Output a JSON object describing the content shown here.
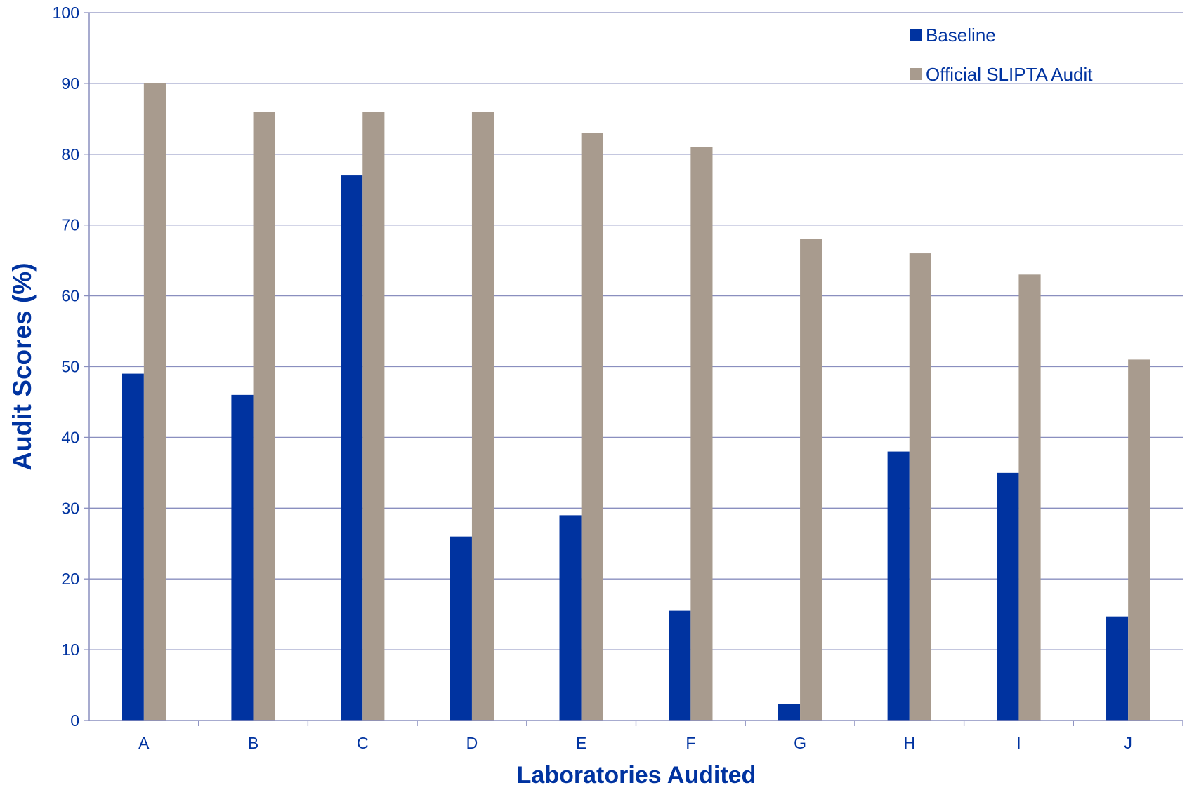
{
  "chart_data": {
    "type": "bar",
    "title": "",
    "xlabel": "Laboratories Audited",
    "ylabel": "Audit Scores (%)",
    "categories": [
      "A",
      "B",
      "C",
      "D",
      "E",
      "F",
      "G",
      "H",
      "I",
      "J"
    ],
    "series": [
      {
        "name": "Baseline",
        "color": "#0033a0",
        "values": [
          49,
          46,
          77,
          26,
          29,
          15.5,
          2.3,
          38,
          35,
          14.7
        ]
      },
      {
        "name": "Official SLIPTA Audit",
        "color": "#a89b8e",
        "values": [
          90,
          86,
          86,
          86,
          83,
          81,
          68,
          66,
          63,
          51
        ]
      }
    ],
    "ylim": [
      0,
      100
    ],
    "yticks": [
      0,
      10,
      20,
      30,
      40,
      50,
      60,
      70,
      80,
      90,
      100
    ],
    "grid": true,
    "legend_position": "top-right",
    "colors": {
      "axis": "#8a8fbf",
      "grid": "#8a8fbf",
      "text": "#0033a0"
    }
  }
}
